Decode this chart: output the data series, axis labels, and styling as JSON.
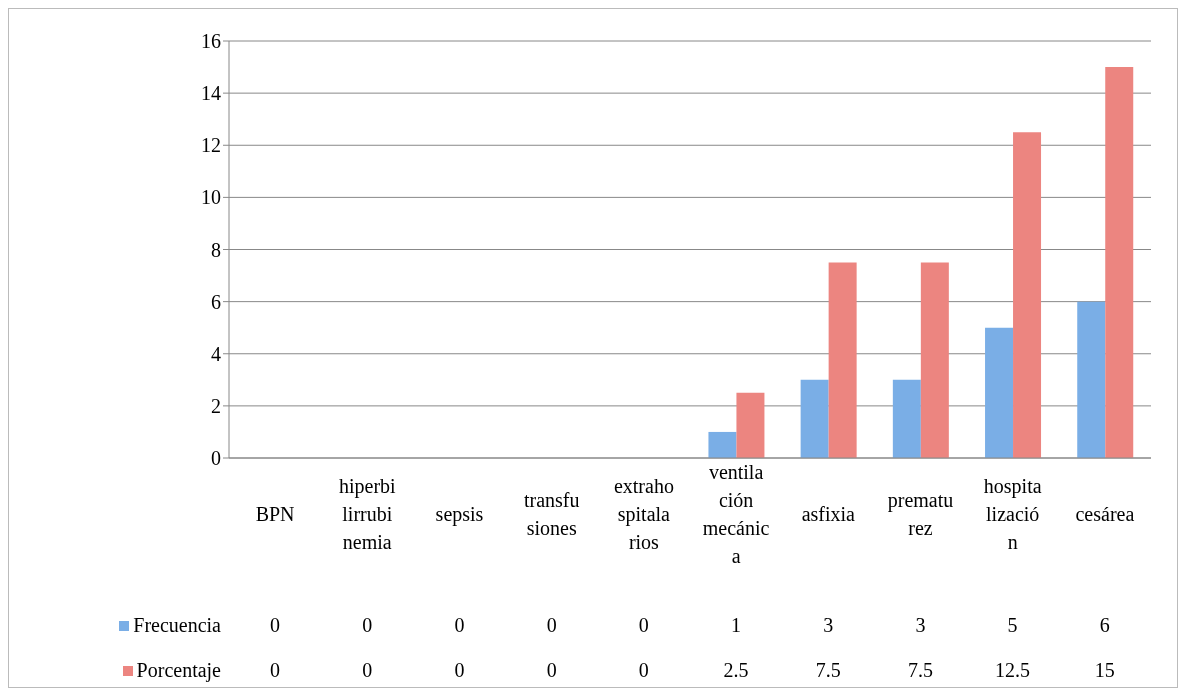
{
  "chart_data": {
    "type": "bar",
    "categories": [
      "BPN",
      "hiperbilirrubinemia",
      "sepsis",
      "transfusiones",
      "extrahospitalarios",
      "ventilación mecánica",
      "asfixia",
      "prematurez",
      "hospitalización",
      "cesárea"
    ],
    "series": [
      {
        "name": "Frecuencia",
        "color": "#7aaee6",
        "values": [
          0,
          0,
          0,
          0,
          0,
          1,
          3,
          3,
          5,
          6
        ]
      },
      {
        "name": "Porcentaje",
        "color": "#ec8580",
        "values": [
          0,
          0,
          0,
          0,
          0,
          2.5,
          7.5,
          7.5,
          12.5,
          15
        ]
      }
    ],
    "ylim": [
      0,
      16
    ],
    "yticks": [
      0,
      2,
      4,
      6,
      8,
      10,
      12,
      14,
      16
    ],
    "grid": "y",
    "legend": "bottom",
    "data_labels": true
  }
}
